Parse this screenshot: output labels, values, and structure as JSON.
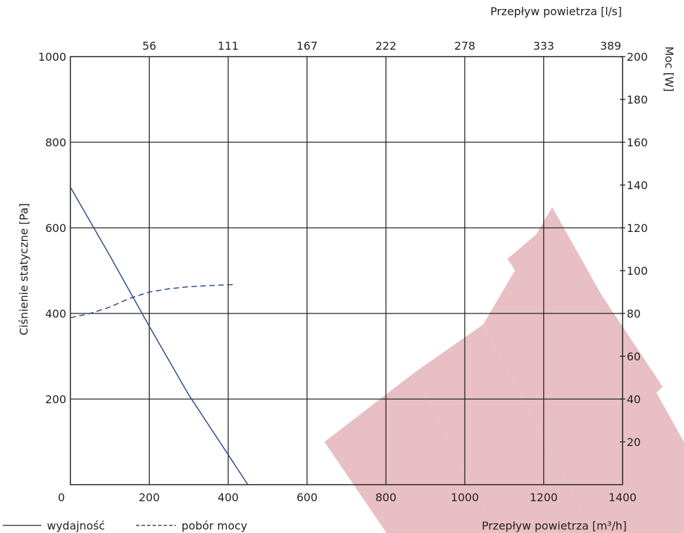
{
  "chart_data": {
    "type": "line",
    "xlabel_bottom": "Przepływ powietrza [m³/h]",
    "xlabel_top": "Przepływ powietrza [l/s]",
    "ylabel_left": "Ciśnienie statyczne [Pa]",
    "ylabel_right": "Moc [W]",
    "xlim": [
      0,
      1400
    ],
    "ylim_left": [
      0,
      1000
    ],
    "ylim_right": [
      0,
      200
    ],
    "x_ticks_bottom": [
      "0",
      "200",
      "400",
      "600",
      "800",
      "1000",
      "1200",
      "1400"
    ],
    "x_ticks_top": [
      "56",
      "111",
      "167",
      "222",
      "278",
      "333",
      "389"
    ],
    "y_ticks_left": [
      "200",
      "400",
      "600",
      "800",
      "1000"
    ],
    "y_ticks_right": [
      "20",
      "40",
      "60",
      "80",
      "100",
      "120",
      "140",
      "160",
      "180",
      "200"
    ],
    "grid": true,
    "legend_position": "bottom-left",
    "series": [
      {
        "name": "wydajność",
        "axis": "left",
        "style": "solid",
        "color": "#2b4a8a",
        "points": [
          [
            0,
            695
          ],
          [
            100,
            535
          ],
          [
            200,
            370
          ],
          [
            300,
            210
          ],
          [
            400,
            70
          ],
          [
            450,
            0
          ]
        ]
      },
      {
        "name": "pobór mocy",
        "axis": "right",
        "style": "dashed",
        "color": "#2b4a8a",
        "points": [
          [
            0,
            78
          ],
          [
            50,
            80
          ],
          [
            100,
            83
          ],
          [
            150,
            87
          ],
          [
            200,
            90
          ],
          [
            250,
            91.5
          ],
          [
            300,
            92.5
          ],
          [
            350,
            93
          ],
          [
            420,
            93.5
          ]
        ]
      }
    ]
  },
  "watermark_color": "#e8bfc4"
}
